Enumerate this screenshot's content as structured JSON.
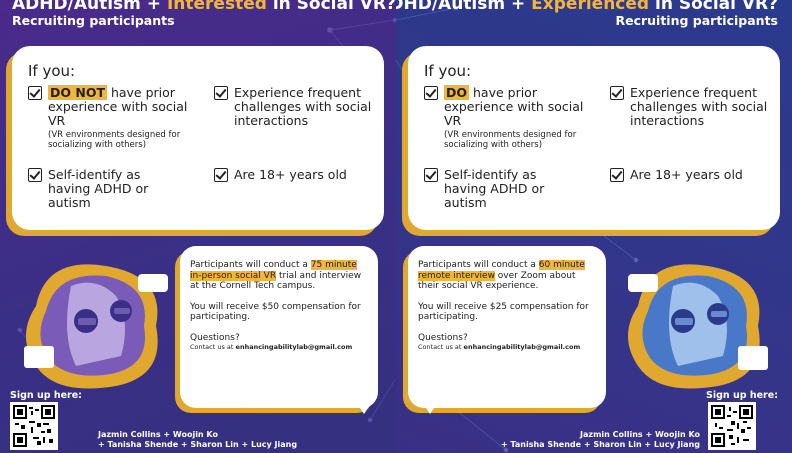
{
  "left": {
    "headline_pre": "ADHD/Autism + ",
    "headline_hl": "Interested",
    "headline_post": " in Social VR?",
    "sub": "Recruiting participants",
    "if_you": "If you:",
    "crit1_tag": "DO NOT",
    "crit1_rest": " have prior experience with social VR",
    "crit1_small": "(VR environments designed for socializing with others)",
    "crit2": "Experience frequent challenges with social interactions",
    "crit3": "Self-identify as having ADHD or autism",
    "crit4": "Are 18+ years old",
    "info_pre": "Participants will conduct a ",
    "info_mark": "75 minute in-person social VR",
    "info_post": " trial and interview at the Cornell Tech campus.",
    "comp": "You will receive $50 compensation for participating.",
    "questions": "Questions?",
    "contact_pre": "Contact us at ",
    "contact_email": "enhancingabilitylab@gmail.com",
    "signup": "Sign up here:",
    "credits_1": "Jazmin Collins + Woojin Ko",
    "credits_2": "+ Tanisha Shende + Sharon Lin + Lucy Jiang"
  },
  "right": {
    "headline_pre": "ADHD/Autism + ",
    "headline_hl": "Experienced",
    "headline_post": " in Social VR?",
    "sub": "Recruiting participants",
    "if_you": "If you:",
    "crit1_tag": "DO",
    "crit1_rest": " have prior experience with social VR",
    "crit1_small": "(VR environments designed for socializing with others)",
    "crit2": "Experience frequent challenges with social interactions",
    "crit3": "Self-identify as having ADHD or autism",
    "crit4": "Are 18+ years old",
    "info_pre": "Participants will conduct a ",
    "info_mark": "60 minute remote interview",
    "info_post": " over Zoom about their social VR experience.",
    "comp": "You will receive $25 compensation for participating.",
    "questions": "Questions?",
    "contact_pre": "Contact us at ",
    "contact_email": "enhancingabilitylab@gmail.com",
    "signup": "Sign up here:",
    "credits_1": "Jazmin Collins + Woojin Ko",
    "credits_2": "+ Tanisha Shende + Sharon Lin + Lucy Jiang"
  },
  "colors": {
    "accent": "#f2b43a",
    "bg_left": "#3a2f86",
    "bg_right": "#2a3a8c"
  },
  "icons": [
    "checkbox-icon",
    "qr-code-icon",
    "vr-users-illustration"
  ]
}
